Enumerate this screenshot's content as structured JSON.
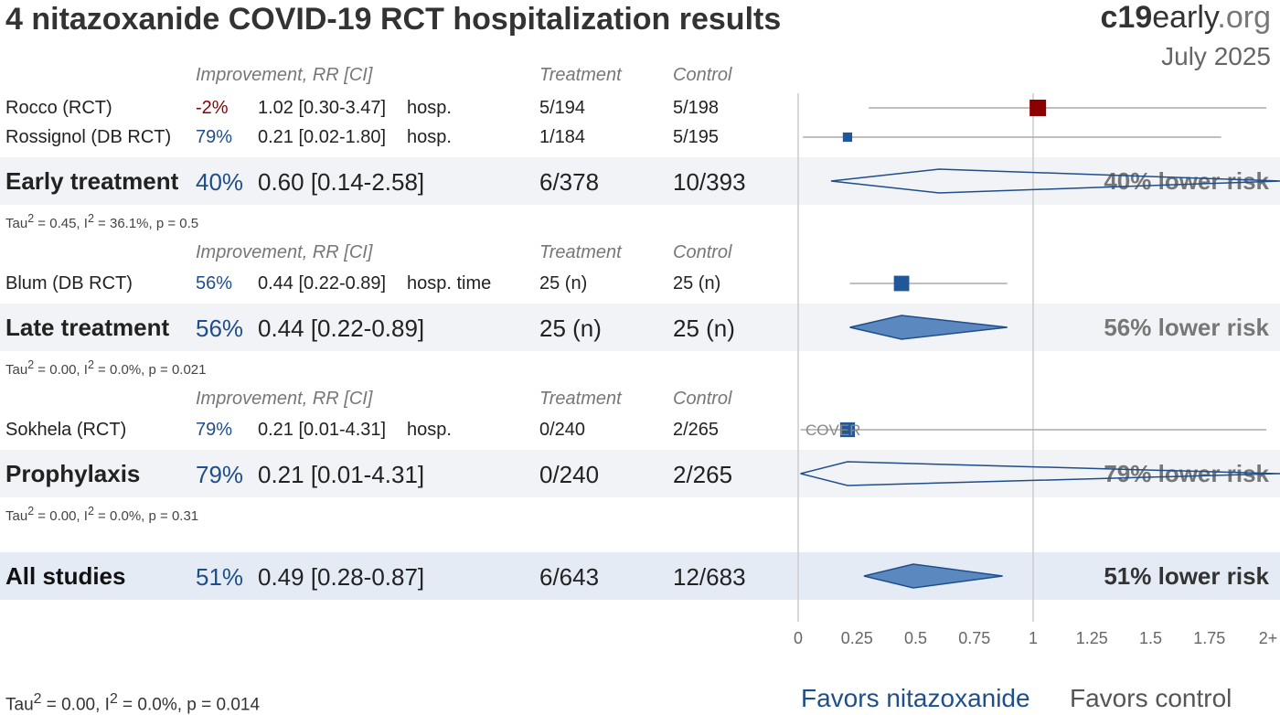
{
  "header": {
    "title": "4 nitazoxanide COVID-19 RCT hospitalization results",
    "brand_bold": "c19",
    "brand_mid": "early",
    "brand_light": ".org",
    "date": "July 2025"
  },
  "columns": {
    "improvement": "Improvement, RR [CI]",
    "treatment": "Treatment",
    "control": "Control"
  },
  "groups": [
    {
      "studies": [
        {
          "name": "Rocco (RCT)",
          "improvement": "-2%",
          "rr_ci": "1.02 [0.30-3.47]",
          "outcome": "hosp.",
          "treatment": "5/194",
          "control": "5/198"
        },
        {
          "name": "Rossignol (DB RCT)",
          "improvement": "79%",
          "rr_ci": "0.21 [0.02-1.80]",
          "outcome": "hosp.",
          "treatment": "1/184",
          "control": "5/195"
        }
      ],
      "summary": {
        "name": "Early treatment",
        "improvement": "40%",
        "rr_ci": "0.60 [0.14-2.58]",
        "treatment": "6/378",
        "control": "10/393",
        "risk": "40% lower risk"
      },
      "stats": {
        "tau_prefix": "Tau",
        "tau_rest": " = 0.45, I",
        "i_rest": " = 36.1%, p = 0.5"
      }
    },
    {
      "studies": [
        {
          "name": "Blum (DB RCT)",
          "improvement": "56%",
          "rr_ci": "0.44 [0.22-0.89]",
          "outcome": "hosp. time",
          "treatment": "25 (n)",
          "control": "25 (n)"
        }
      ],
      "summary": {
        "name": "Late treatment",
        "improvement": "56%",
        "rr_ci": "0.44 [0.22-0.89]",
        "treatment": "25 (n)",
        "control": "25 (n)",
        "risk": "56% lower risk"
      },
      "stats": {
        "tau_prefix": "Tau",
        "tau_rest": " = 0.00, I",
        "i_rest": " = 0.0%, p = 0.021"
      }
    },
    {
      "studies": [
        {
          "name": "Sokhela (RCT)",
          "improvement": "79%",
          "rr_ci": "0.21 [0.01-4.31]",
          "outcome": "hosp.",
          "treatment": "0/240",
          "control": "2/265"
        }
      ],
      "summary": {
        "name": "Prophylaxis",
        "improvement": "79%",
        "rr_ci": "0.21 [0.01-4.31]",
        "treatment": "0/240",
        "control": "2/265",
        "risk": "79% lower risk"
      },
      "stats": {
        "tau_prefix": "Tau",
        "tau_rest": " = 0.00, I",
        "i_rest": " = 0.0%, p = 0.31"
      }
    }
  ],
  "all": {
    "name": "All studies",
    "improvement": "51%",
    "rr_ci": "0.49 [0.28-0.87]",
    "treatment": "6/643",
    "control": "12/683",
    "risk": "51% lower risk"
  },
  "overall_stats": {
    "tau_prefix": "Tau",
    "tau_rest": " = 0.00, I",
    "i_rest": " = 0.0%, p = 0.014"
  },
  "cover_label": "COVER",
  "favors": {
    "left": "Favors nitazoxanide",
    "right": "Favors control"
  },
  "colors": {
    "benefit": "#1f5799",
    "harm": "#8b0000",
    "diamond_fill": "#5b88bf",
    "diamond_stroke": "#1f4e8c",
    "ci_line": "#aaaaaa"
  },
  "chart_data": {
    "type": "forest",
    "x_axis": {
      "ticks": [
        0,
        0.25,
        0.5,
        0.75,
        1,
        1.25,
        1.5,
        1.75,
        2
      ],
      "tick_labels": [
        "0",
        "0.25",
        "0.5",
        "0.75",
        "1",
        "1.25",
        "1.5",
        "1.75",
        "2+"
      ],
      "range": [
        0,
        2
      ],
      "null_line": 1
    },
    "studies": [
      {
        "name": "Rocco (RCT)",
        "rr": 1.02,
        "lo": 0.3,
        "hi": 3.47,
        "weight": 1.0
      },
      {
        "name": "Rossignol (DB RCT)",
        "rr": 0.21,
        "lo": 0.02,
        "hi": 1.8,
        "weight": 0.35
      },
      {
        "name": "Blum (DB RCT)",
        "rr": 0.44,
        "lo": 0.22,
        "hi": 0.89,
        "weight": 0.9
      },
      {
        "name": "Sokhela (RCT)",
        "rr": 0.21,
        "lo": 0.01,
        "hi": 4.31,
        "weight": 0.85
      }
    ],
    "summaries": [
      {
        "name": "Early treatment",
        "rr": 0.6,
        "lo": 0.14,
        "hi": 2.58
      },
      {
        "name": "Late treatment",
        "rr": 0.44,
        "lo": 0.22,
        "hi": 0.89
      },
      {
        "name": "Prophylaxis",
        "rr": 0.21,
        "lo": 0.01,
        "hi": 4.31
      },
      {
        "name": "All studies",
        "rr": 0.49,
        "lo": 0.28,
        "hi": 0.87
      }
    ]
  }
}
